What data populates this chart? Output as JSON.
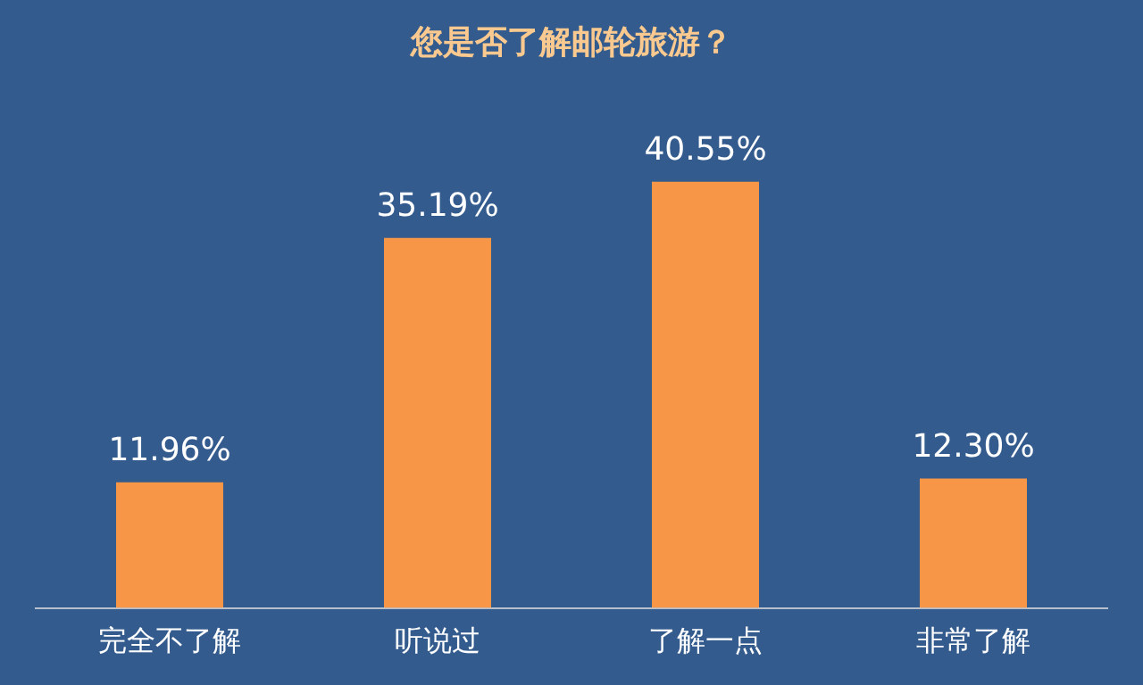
{
  "chart_data": {
    "type": "bar",
    "title": "您是否了解邮轮旅游？",
    "categories": [
      "完全不了解",
      "听说过",
      "了解一点",
      "非常了解"
    ],
    "values": [
      11.96,
      35.19,
      40.55,
      12.3
    ],
    "value_labels": [
      "11.96%",
      "35.19%",
      "40.55%",
      "12.30%"
    ],
    "color": "#f79646",
    "grid": false,
    "legend": false
  }
}
